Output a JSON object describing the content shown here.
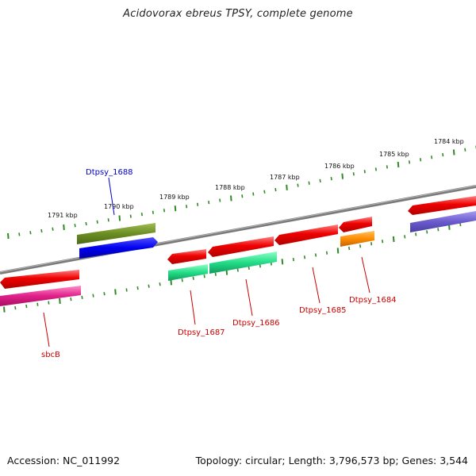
{
  "title": "Acidovorax ebreus TPSY, complete genome",
  "footer": {
    "accession": "Accession: NC_011992",
    "summary": "Topology: circular; Length: 3,796,573 bp; Genes: 3,544"
  },
  "ruler_labels": [
    "1791 kbp",
    "1790 kbp",
    "1789 kbp",
    "1788 kbp",
    "1787 kbp",
    "1786 kbp",
    "1785 kbp",
    "1784 kbp"
  ],
  "gene_labels": [
    {
      "text": "Dtpsy_1688",
      "color": "#0000cc"
    },
    {
      "text": "sbcB",
      "color": "#cc0000"
    },
    {
      "text": "Dtpsy_1687",
      "color": "#cc0000"
    },
    {
      "text": "Dtpsy_1686",
      "color": "#cc0000"
    },
    {
      "text": "Dtpsy_1685",
      "color": "#cc0000"
    },
    {
      "text": "Dtpsy_1684",
      "color": "#cc0000"
    }
  ],
  "colors": {
    "backbone": "#7a7a7a",
    "tick": "#2e8b22",
    "gene_red": "#ee0000",
    "cds_blue": "#0000ee",
    "cds_olive": "#6b8e23",
    "cds_pink": "#e0208a",
    "cds_green": "#22dd88",
    "cds_orange": "#ff8c00",
    "cds_purple": "#6a5acd"
  }
}
